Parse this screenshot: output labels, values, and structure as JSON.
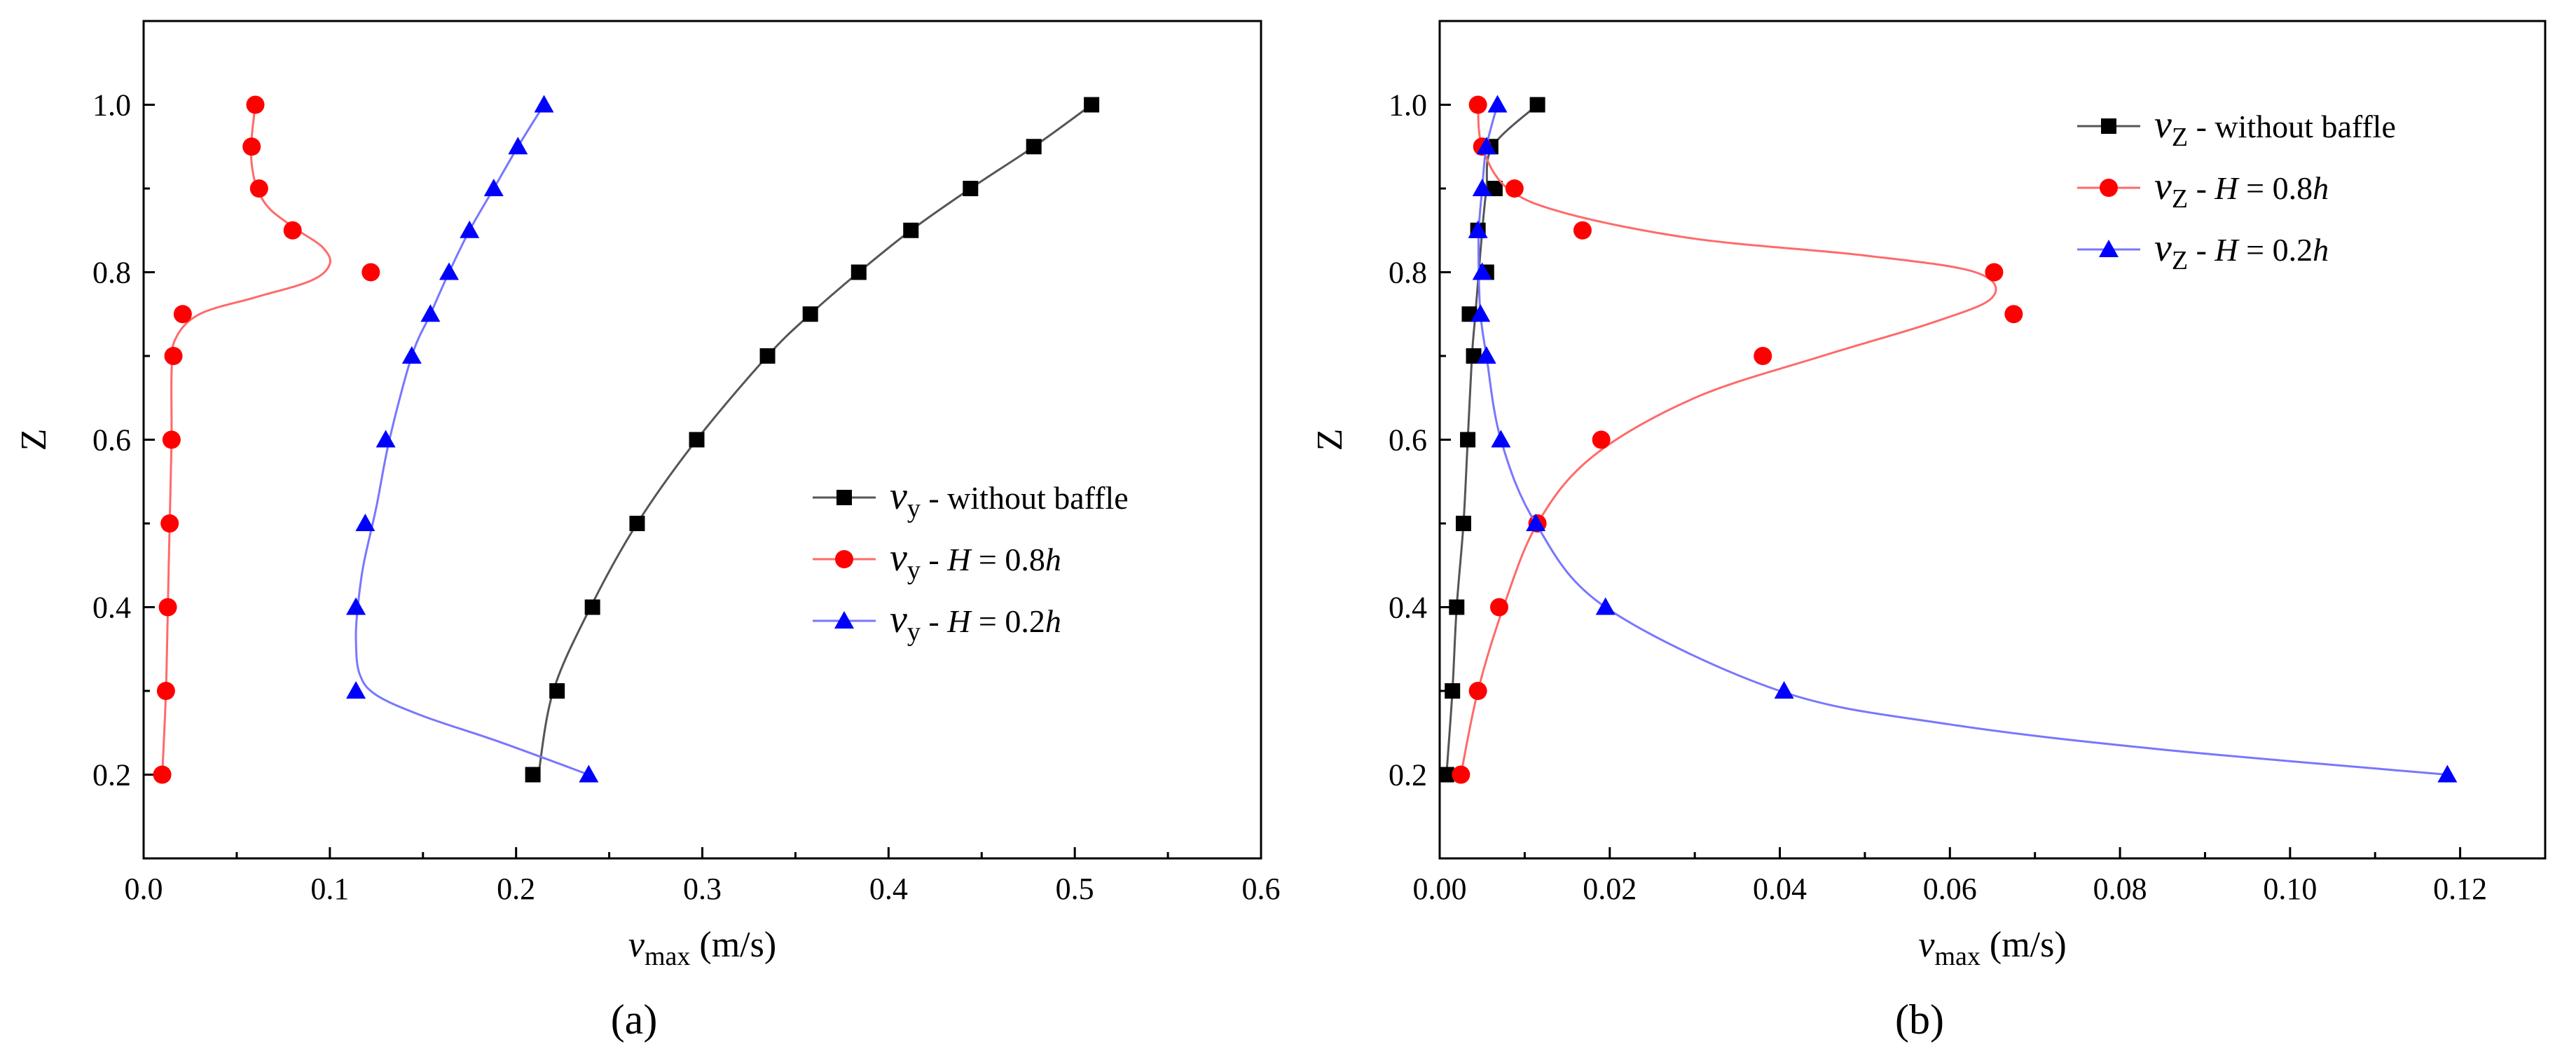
{
  "chart_data": [
    {
      "type": "scatter",
      "panel_label": "(a)",
      "xlim": [
        0,
        0.6
      ],
      "ylim": [
        0.1,
        1.1
      ],
      "xticks": [
        0.0,
        0.1,
        0.2,
        0.3,
        0.4,
        0.5,
        0.6
      ],
      "xtick_labels": [
        "0.0",
        "0.1",
        "0.2",
        "0.3",
        "0.4",
        "0.5",
        "0.6"
      ],
      "yticks": [
        0.2,
        0.4,
        0.6,
        0.8,
        1.0
      ],
      "ytick_labels": [
        "0.2",
        "0.4",
        "0.6",
        "0.8",
        "1.0"
      ],
      "xlabel": "v",
      "xlabel_sub": "max",
      "xlabel_unit": " (m/s)",
      "ylabel": "Z",
      "legend_position": "center-right",
      "series": [
        {
          "name": "without baffle",
          "legend_var": "v",
          "legend_sub": "y",
          "legend_rest": " - without baffle",
          "legend_italic": "",
          "marker": "square",
          "color": "#000000",
          "line_color": "#555555",
          "x": [
            0.209,
            0.222,
            0.241,
            0.265,
            0.297,
            0.335,
            0.358,
            0.384,
            0.412,
            0.444,
            0.478,
            0.509
          ],
          "y": [
            0.2,
            0.3,
            0.4,
            0.5,
            0.6,
            0.7,
            0.75,
            0.8,
            0.85,
            0.9,
            0.95,
            1.0
          ],
          "curve_x": [
            0.212,
            0.22,
            0.24,
            0.265,
            0.297,
            0.335,
            0.358,
            0.384,
            0.412,
            0.444,
            0.478,
            0.509
          ],
          "curve_y": [
            0.2,
            0.3,
            0.4,
            0.5,
            0.6,
            0.7,
            0.75,
            0.8,
            0.85,
            0.9,
            0.95,
            1.0
          ]
        },
        {
          "name": "H = 0.8h",
          "legend_var": "v",
          "legend_sub": "y",
          "legend_rest": " - ",
          "legend_italic": "H",
          "legend_rest2": " = 0.8",
          "legend_italic2": "h",
          "marker": "circle",
          "color": "#ff0000",
          "line_color": "#ff6a6a",
          "x": [
            0.01,
            0.012,
            0.013,
            0.014,
            0.015,
            0.016,
            0.021,
            0.122,
            0.08,
            0.062,
            0.058,
            0.06
          ],
          "y": [
            0.2,
            0.3,
            0.4,
            0.5,
            0.6,
            0.7,
            0.75,
            0.8,
            0.85,
            0.9,
            0.95,
            1.0
          ],
          "curve_x": [
            0.01,
            0.012,
            0.013,
            0.014,
            0.015,
            0.015,
            0.017,
            0.03,
            0.06,
            0.09,
            0.1,
            0.096,
            0.083,
            0.068,
            0.061,
            0.058,
            0.058,
            0.06
          ],
          "curve_y": [
            0.2,
            0.3,
            0.4,
            0.5,
            0.6,
            0.68,
            0.72,
            0.75,
            0.77,
            0.79,
            0.81,
            0.83,
            0.85,
            0.875,
            0.9,
            0.93,
            0.96,
            1.0
          ]
        },
        {
          "name": "H = 0.2h",
          "legend_var": "v",
          "legend_sub": "y",
          "legend_rest": " - ",
          "legend_italic": "H",
          "legend_rest2": " = 0.2",
          "legend_italic2": "h",
          "marker": "triangle",
          "color": "#0000ff",
          "line_color": "#7777ff",
          "x": [
            0.239,
            0.114,
            0.114,
            0.119,
            0.13,
            0.144,
            0.154,
            0.164,
            0.175,
            0.188,
            0.201,
            0.215
          ],
          "y": [
            0.2,
            0.3,
            0.4,
            0.5,
            0.6,
            0.7,
            0.75,
            0.8,
            0.85,
            0.9,
            0.95,
            1.0
          ],
          "curve_x": [
            0.239,
            0.19,
            0.15,
            0.125,
            0.116,
            0.114,
            0.115,
            0.118,
            0.125,
            0.132,
            0.144,
            0.154,
            0.164,
            0.175,
            0.188,
            0.201,
            0.215
          ],
          "curve_y": [
            0.2,
            0.24,
            0.27,
            0.295,
            0.32,
            0.36,
            0.4,
            0.45,
            0.52,
            0.6,
            0.7,
            0.75,
            0.8,
            0.85,
            0.9,
            0.95,
            1.0
          ]
        }
      ]
    },
    {
      "type": "scatter",
      "panel_label": "(b)",
      "xlim": [
        0,
        0.13
      ],
      "ylim": [
        0.1,
        1.1
      ],
      "xticks": [
        0.0,
        0.02,
        0.04,
        0.06,
        0.08,
        0.1,
        0.12
      ],
      "xtick_labels": [
        "0.00",
        "0.02",
        "0.04",
        "0.06",
        "0.08",
        "0.10",
        "0.12"
      ],
      "yticks": [
        0.2,
        0.4,
        0.6,
        0.8,
        1.0
      ],
      "ytick_labels": [
        "0.2",
        "0.4",
        "0.6",
        "0.8",
        "1.0"
      ],
      "xlabel": "v",
      "xlabel_sub": "max",
      "xlabel_unit": " (m/s)",
      "ylabel": "Z",
      "legend_position": "top-right",
      "series": [
        {
          "name": "without baffle",
          "legend_var": "v",
          "legend_sub": "Z",
          "legend_rest": " - without baffle",
          "legend_italic": "",
          "marker": "square",
          "color": "#000000",
          "line_color": "#555555",
          "x": [
            0.0008,
            0.0015,
            0.002,
            0.0028,
            0.0033,
            0.004,
            0.0035,
            0.0055,
            0.0045,
            0.0065,
            0.006,
            0.0115
          ],
          "y": [
            0.2,
            0.3,
            0.4,
            0.5,
            0.6,
            0.7,
            0.75,
            0.8,
            0.85,
            0.9,
            0.95,
            1.0
          ],
          "curve_x": [
            0.0008,
            0.0015,
            0.002,
            0.0028,
            0.0033,
            0.0038,
            0.0042,
            0.0046,
            0.005,
            0.0055,
            0.0062,
            0.0115
          ],
          "curve_y": [
            0.2,
            0.3,
            0.4,
            0.5,
            0.6,
            0.7,
            0.75,
            0.8,
            0.85,
            0.9,
            0.95,
            1.0
          ]
        },
        {
          "name": "H = 0.8h",
          "legend_var": "v",
          "legend_sub": "Z",
          "legend_rest": " - ",
          "legend_italic": "H",
          "legend_rest2": " = 0.8",
          "legend_italic2": "h",
          "marker": "circle",
          "color": "#ff0000",
          "line_color": "#ff6a6a",
          "x": [
            0.0025,
            0.0045,
            0.007,
            0.0115,
            0.019,
            0.038,
            0.0675,
            0.0652,
            0.0168,
            0.0088,
            0.005,
            0.0045
          ],
          "y": [
            0.2,
            0.3,
            0.4,
            0.5,
            0.6,
            0.7,
            0.75,
            0.8,
            0.85,
            0.9,
            0.95,
            1.0
          ],
          "curve_x": [
            0.0025,
            0.0045,
            0.0075,
            0.0115,
            0.018,
            0.03,
            0.045,
            0.058,
            0.065,
            0.063,
            0.05,
            0.03,
            0.015,
            0.008,
            0.005,
            0.0045
          ],
          "curve_y": [
            0.2,
            0.3,
            0.4,
            0.5,
            0.58,
            0.65,
            0.7,
            0.74,
            0.77,
            0.8,
            0.82,
            0.84,
            0.87,
            0.9,
            0.95,
            1.0
          ]
        },
        {
          "name": "H = 0.2h",
          "legend_var": "v",
          "legend_sub": "Z",
          "legend_rest": " - ",
          "legend_italic": "H",
          "legend_rest2": " = 0.2",
          "legend_italic2": "h",
          "marker": "triangle",
          "color": "#0000ff",
          "line_color": "#7777ff",
          "x": [
            0.1185,
            0.0405,
            0.0195,
            0.0113,
            0.0072,
            0.0055,
            0.0048,
            0.005,
            0.0045,
            0.005,
            0.0055,
            0.0068
          ],
          "y": [
            0.2,
            0.3,
            0.4,
            0.5,
            0.6,
            0.7,
            0.75,
            0.8,
            0.85,
            0.9,
            0.95,
            1.0
          ],
          "curve_x": [
            0.1185,
            0.085,
            0.06,
            0.04,
            0.0195,
            0.0113,
            0.0072,
            0.0055,
            0.0048,
            0.0046,
            0.0046,
            0.005,
            0.0055,
            0.0068
          ],
          "curve_y": [
            0.2,
            0.23,
            0.26,
            0.3,
            0.4,
            0.5,
            0.6,
            0.7,
            0.75,
            0.8,
            0.85,
            0.9,
            0.95,
            1.0
          ]
        }
      ]
    }
  ]
}
